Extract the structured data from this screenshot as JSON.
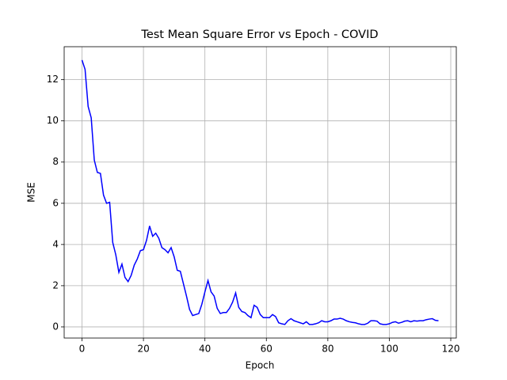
{
  "chart_data": {
    "type": "line",
    "title": "Test Mean Square Error vs Epoch - COVID",
    "x_label": "Epoch",
    "y_label": "MSE",
    "x": [
      0,
      1,
      2,
      3,
      4,
      5,
      6,
      7,
      8,
      9,
      10,
      11,
      12,
      13,
      14,
      15,
      16,
      17,
      18,
      19,
      20,
      21,
      22,
      23,
      24,
      25,
      26,
      27,
      28,
      29,
      30,
      31,
      32,
      33,
      34,
      35,
      36,
      37,
      38,
      39,
      40,
      41,
      42,
      43,
      44,
      45,
      46,
      47,
      48,
      49,
      50,
      51,
      52,
      53,
      54,
      55,
      56,
      57,
      58,
      59,
      60,
      61,
      62,
      63,
      64,
      65,
      66,
      67,
      68,
      69,
      70,
      71,
      72,
      73,
      74,
      75,
      76,
      77,
      78,
      79,
      80,
      81,
      82,
      83,
      84,
      85,
      86,
      87,
      88,
      89,
      90,
      91,
      92,
      93,
      94,
      95,
      96,
      97,
      98,
      99,
      100,
      101,
      102,
      103,
      104,
      105,
      106,
      107,
      108,
      109,
      110,
      111,
      112,
      113,
      114,
      115,
      116
    ],
    "series": [
      {
        "name": "MSE",
        "color": "#0000ff",
        "values": [
          12.95,
          12.5,
          10.7,
          10.15,
          8.1,
          7.5,
          7.45,
          6.4,
          6.0,
          6.05,
          4.1,
          3.5,
          2.65,
          3.05,
          2.4,
          2.2,
          2.5,
          3.0,
          3.3,
          3.7,
          3.75,
          4.2,
          4.9,
          4.4,
          4.55,
          4.3,
          3.85,
          3.75,
          3.6,
          3.85,
          3.4,
          2.75,
          2.7,
          2.1,
          1.5,
          0.85,
          0.55,
          0.6,
          0.65,
          1.1,
          1.7,
          2.25,
          1.7,
          1.5,
          0.9,
          0.65,
          0.7,
          0.7,
          0.9,
          1.2,
          1.65,
          0.95,
          0.75,
          0.7,
          0.55,
          0.45,
          1.05,
          0.95,
          0.6,
          0.45,
          0.45,
          0.45,
          0.6,
          0.5,
          0.2,
          0.15,
          0.12,
          0.3,
          0.4,
          0.3,
          0.25,
          0.2,
          0.15,
          0.25,
          0.12,
          0.12,
          0.15,
          0.2,
          0.3,
          0.25,
          0.25,
          0.3,
          0.38,
          0.38,
          0.42,
          0.38,
          0.3,
          0.25,
          0.22,
          0.2,
          0.15,
          0.12,
          0.12,
          0.18,
          0.3,
          0.3,
          0.28,
          0.15,
          0.12,
          0.12,
          0.15,
          0.22,
          0.25,
          0.18,
          0.22,
          0.28,
          0.3,
          0.25,
          0.3,
          0.28,
          0.3,
          0.3,
          0.35,
          0.38,
          0.4,
          0.32,
          0.3
        ]
      }
    ],
    "xlim": [
      -5.8,
      121.8
    ],
    "ylim": [
      -0.54,
      13.6
    ],
    "xticks": [
      0,
      20,
      40,
      60,
      80,
      100,
      120
    ],
    "yticks": [
      0,
      2,
      4,
      6,
      8,
      10,
      12
    ],
    "grid": true
  }
}
